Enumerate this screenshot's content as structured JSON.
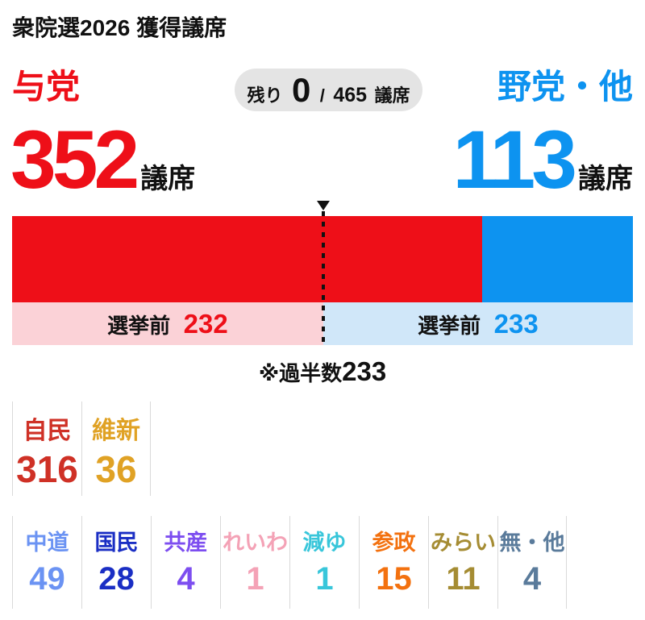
{
  "title": "衆院選2026 獲得議席",
  "colors": {
    "ruling_red": "#ee0f18",
    "opposition_blue": "#0d93f0",
    "ruling_pre_bg": "#fbd2d7",
    "opposition_pre_bg": "#d0e7f9",
    "pill_bg": "#e4e4e4"
  },
  "header": {
    "ruling_label": "与党",
    "opposition_label": "野党・他",
    "remaining": {
      "prefix": "残り",
      "value": "0",
      "separator": "/",
      "total": "465",
      "unit": "議席"
    }
  },
  "totals": {
    "ruling_seats": "352",
    "opposition_seats": "113",
    "seat_unit": "議席"
  },
  "pre_election": {
    "ruling_label": "選挙前",
    "ruling_value": "232",
    "opposition_label": "選挙前",
    "opposition_value": "233"
  },
  "majority_note": {
    "prefix": "※過半数",
    "value": "233"
  },
  "parties": {
    "row1": [
      {
        "name": "自民",
        "seats": "316",
        "color": "#cf3126"
      },
      {
        "name": "維新",
        "seats": "36",
        "color": "#e0a225"
      }
    ],
    "row2": [
      {
        "name": "中道",
        "seats": "49",
        "color": "#6b93f3"
      },
      {
        "name": "国民",
        "seats": "28",
        "color": "#1a2ec4"
      },
      {
        "name": "共産",
        "seats": "4",
        "color": "#7d4ef0"
      },
      {
        "name": "れいわ",
        "seats": "1",
        "color": "#f4a2b6"
      },
      {
        "name": "減ゆ",
        "seats": "1",
        "color": "#38c6da"
      },
      {
        "name": "参政",
        "seats": "15",
        "color": "#f3710f"
      },
      {
        "name": "みらい",
        "seats": "11",
        "color": "#a58c33"
      },
      {
        "name": "無・他",
        "seats": "4",
        "color": "#5a7b9b"
      }
    ]
  },
  "chart_data": {
    "type": "bar",
    "orientation": "horizontal-stacked",
    "title": "衆院選2026 獲得議席",
    "total_seats": 465,
    "majority_threshold": 233,
    "remaining_seats": 0,
    "series": [
      {
        "name": "与党",
        "seats": 352,
        "pre_election_seats": 232,
        "color": "#ee0f18"
      },
      {
        "name": "野党・他",
        "seats": 113,
        "pre_election_seats": 233,
        "color": "#0d93f0"
      }
    ],
    "party_breakdown": [
      {
        "name": "自民",
        "seats": 316,
        "color": "#cf3126"
      },
      {
        "name": "維新",
        "seats": 36,
        "color": "#e0a225"
      },
      {
        "name": "中道",
        "seats": 49,
        "color": "#6b93f3"
      },
      {
        "name": "国民",
        "seats": 28,
        "color": "#1a2ec4"
      },
      {
        "name": "共産",
        "seats": 4,
        "color": "#7d4ef0"
      },
      {
        "name": "れいわ",
        "seats": 1,
        "color": "#f4a2b6"
      },
      {
        "name": "減ゆ",
        "seats": 1,
        "color": "#38c6da"
      },
      {
        "name": "参政",
        "seats": 15,
        "color": "#f3710f"
      },
      {
        "name": "みらい",
        "seats": 11,
        "color": "#a58c33"
      },
      {
        "name": "無・他",
        "seats": 4,
        "color": "#5a7b9b"
      }
    ]
  }
}
